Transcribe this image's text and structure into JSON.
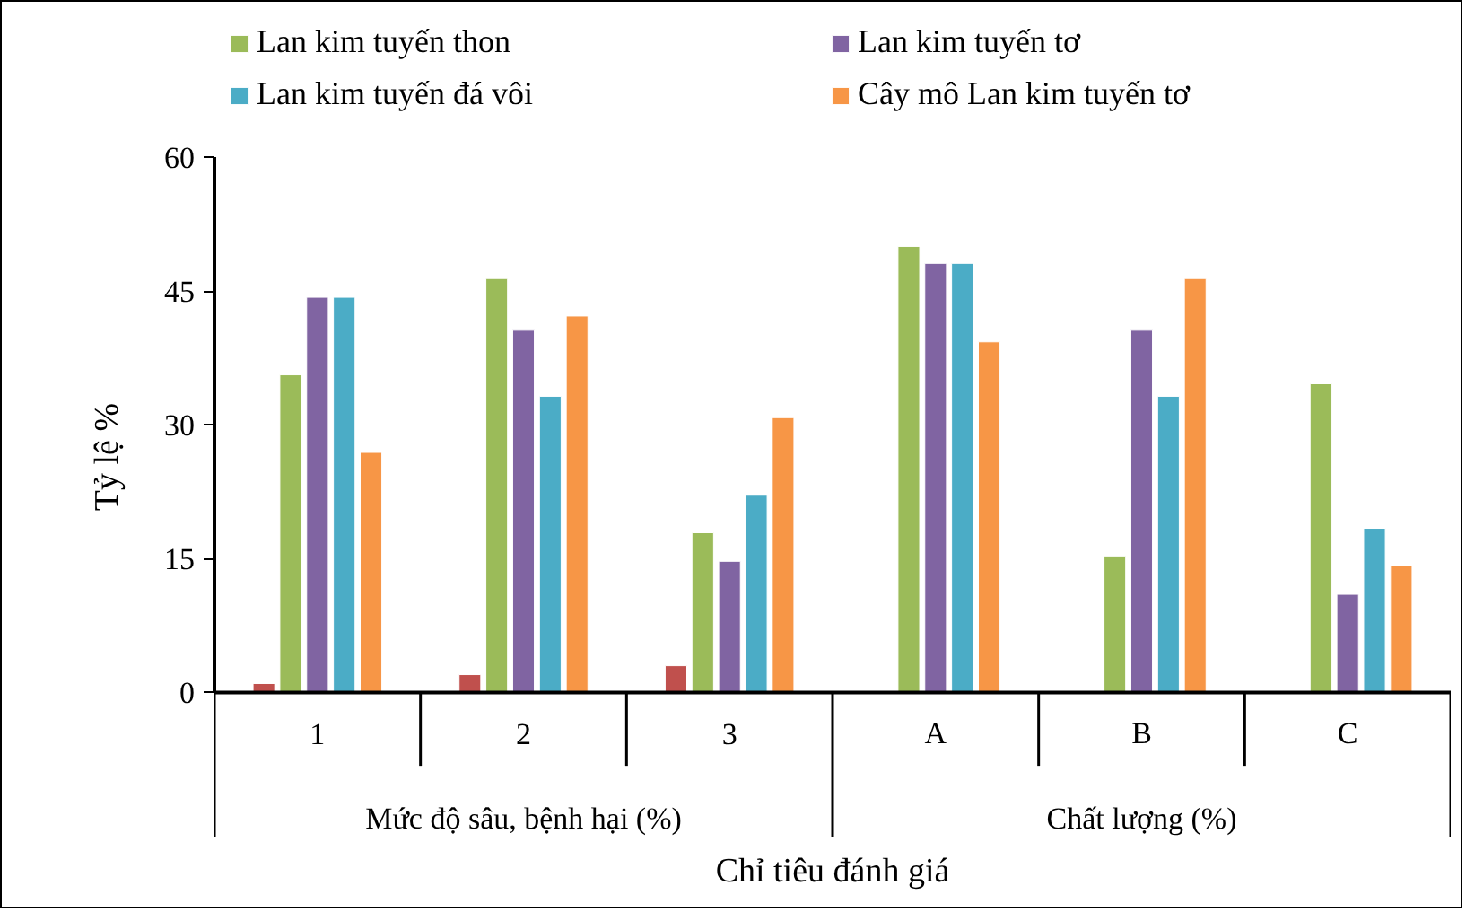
{
  "chart_data": {
    "type": "bar",
    "xlabel": "Chỉ tiêu đánh giá",
    "ylabel": "Tỷ lệ %",
    "categories": [
      "1",
      "2",
      "3",
      "A",
      "B",
      "C"
    ],
    "series": [
      {
        "color": "#c0504d",
        "values": [
          1,
          2,
          3,
          null,
          null,
          null
        ]
      },
      {
        "name": "Lan kim tuyến thon",
        "color": "#9bbb59",
        "values": [
          35.6,
          46.4,
          17.9,
          50.0,
          15.3,
          34.6
        ]
      },
      {
        "name": "Lan kim tuyến tơ",
        "color": "#8064a2",
        "values": [
          44.3,
          40.6,
          14.7,
          48.1,
          40.6,
          11.0
        ]
      },
      {
        "name": "Lan kim tuyến đá vôi",
        "color": "#4bacc6",
        "values": [
          44.3,
          33.2,
          22.1,
          48.1,
          33.2,
          18.4
        ]
      },
      {
        "name": "Cây mô Lan kim tuyến tơ",
        "color": "#f79646",
        "values": [
          26.9,
          42.2,
          30.8,
          39.3,
          46.4,
          14.2
        ]
      }
    ],
    "annotations": [
      "Mức độ sâu, bệnh hại (%)",
      "Chất lượng (%)"
    ],
    "ylim": [
      0,
      60
    ],
    "yticks": [
      0,
      15,
      30,
      45,
      60
    ],
    "grid": false,
    "legend": "top"
  }
}
